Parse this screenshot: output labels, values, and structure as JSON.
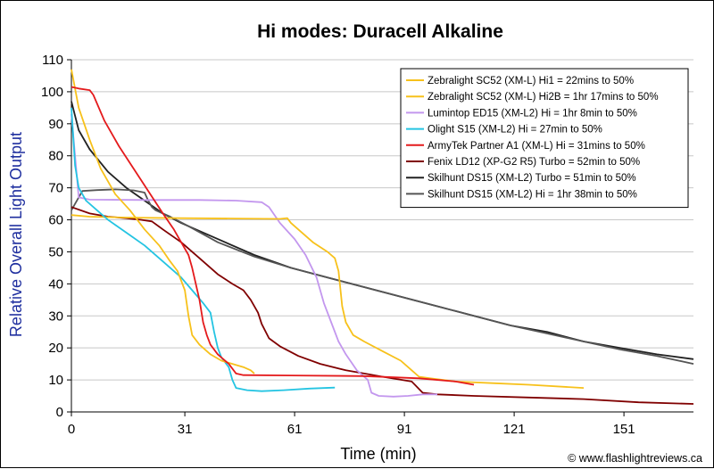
{
  "chart_data": {
    "type": "line",
    "title": "Hi modes: Duracell Alkaline",
    "xlabel": "Time (min)",
    "ylabel": "Relative Overall Light Output",
    "xlim": [
      0,
      170
    ],
    "ylim": [
      0,
      110
    ],
    "xticks": [
      0,
      31,
      61,
      91,
      121,
      151
    ],
    "yticks": [
      0,
      10,
      20,
      30,
      40,
      50,
      60,
      70,
      80,
      90,
      100,
      110
    ],
    "grid": "horizontal",
    "legend_position": "top-right",
    "credit": "© www.flashlightreviews.ca",
    "series": [
      {
        "name": "Zebralight SC52 (XM-L) Hi1 = 22mins to 50%",
        "color": "#f7c11b",
        "points": [
          [
            0,
            107
          ],
          [
            2,
            95
          ],
          [
            5,
            85
          ],
          [
            8,
            76
          ],
          [
            12,
            68
          ],
          [
            16,
            63
          ],
          [
            20,
            57
          ],
          [
            24,
            52
          ],
          [
            27,
            47
          ],
          [
            29,
            44
          ],
          [
            31,
            38
          ],
          [
            32,
            30
          ],
          [
            33,
            24
          ],
          [
            35,
            21
          ],
          [
            38,
            18
          ],
          [
            41,
            16
          ],
          [
            44,
            15
          ],
          [
            47,
            14
          ],
          [
            49,
            13
          ],
          [
            50,
            12
          ]
        ]
      },
      {
        "name": "Zebralight SC52 (XM-L) Hi2B = 1hr 17mins to 50%",
        "color": "#f7c11b",
        "points": [
          [
            0,
            61.5
          ],
          [
            5,
            61
          ],
          [
            15,
            60.7
          ],
          [
            30,
            60.5
          ],
          [
            45,
            60.4
          ],
          [
            57,
            60.3
          ],
          [
            59,
            60.5
          ],
          [
            60,
            59
          ],
          [
            62,
            57
          ],
          [
            66,
            53
          ],
          [
            70,
            50
          ],
          [
            72,
            48
          ],
          [
            73,
            44
          ],
          [
            74,
            33
          ],
          [
            75,
            28
          ],
          [
            77,
            24
          ],
          [
            80,
            22
          ],
          [
            85,
            19
          ],
          [
            90,
            16
          ],
          [
            93,
            13
          ],
          [
            95,
            11
          ],
          [
            98,
            10.5
          ],
          [
            105,
            9.5
          ],
          [
            115,
            9
          ],
          [
            125,
            8.5
          ],
          [
            140,
            7.5
          ]
        ]
      },
      {
        "name": "Lumintop ED15 (XM-L2) Hi = 1hr 8min to 50%",
        "color": "#c397ee",
        "points": [
          [
            0,
            93
          ],
          [
            2,
            67
          ],
          [
            5,
            66.3
          ],
          [
            20,
            66.2
          ],
          [
            35,
            66.2
          ],
          [
            45,
            66
          ],
          [
            52,
            65.5
          ],
          [
            54,
            64
          ],
          [
            57,
            59
          ],
          [
            61,
            54
          ],
          [
            64,
            49
          ],
          [
            67,
            42
          ],
          [
            69,
            34
          ],
          [
            71,
            28
          ],
          [
            73,
            22
          ],
          [
            75,
            18
          ],
          [
            78,
            13
          ],
          [
            81,
            10
          ],
          [
            82,
            6
          ],
          [
            84,
            5
          ],
          [
            88,
            4.8
          ],
          [
            92,
            5
          ],
          [
            96,
            5.5
          ],
          [
            100,
            5.5
          ]
        ]
      },
      {
        "name": "Olight S15 (XM-L2) Hi = 27min to 50%",
        "color": "#24c4e2",
        "points": [
          [
            0,
            95
          ],
          [
            1,
            77
          ],
          [
            2,
            70
          ],
          [
            4,
            66
          ],
          [
            7,
            63
          ],
          [
            10,
            60
          ],
          [
            15,
            56
          ],
          [
            20,
            52
          ],
          [
            25,
            47
          ],
          [
            30,
            42
          ],
          [
            33,
            38
          ],
          [
            36,
            34
          ],
          [
            38,
            31
          ],
          [
            39,
            25
          ],
          [
            40,
            20
          ],
          [
            41,
            17
          ],
          [
            43,
            14
          ],
          [
            44,
            10
          ],
          [
            45,
            7.5
          ],
          [
            48,
            6.8
          ],
          [
            52,
            6.5
          ],
          [
            58,
            6.8
          ],
          [
            65,
            7.3
          ],
          [
            72,
            7.6
          ]
        ]
      },
      {
        "name": "ArmyTek Partner A1 (XM-L) Hi = 31mins to 50%",
        "color": "#e41a1c",
        "points": [
          [
            0,
            101.5
          ],
          [
            2,
            101
          ],
          [
            5,
            100.5
          ],
          [
            6,
            99
          ],
          [
            9,
            91
          ],
          [
            13,
            83
          ],
          [
            17,
            76
          ],
          [
            21,
            69
          ],
          [
            25,
            62
          ],
          [
            28,
            57
          ],
          [
            30,
            53
          ],
          [
            32,
            49
          ],
          [
            33,
            45
          ],
          [
            35,
            35
          ],
          [
            36,
            28
          ],
          [
            37,
            24
          ],
          [
            38,
            21
          ],
          [
            40,
            18
          ],
          [
            43,
            15
          ],
          [
            45,
            12
          ],
          [
            47,
            11.5
          ],
          [
            60,
            11.4
          ],
          [
            80,
            11.2
          ],
          [
            95,
            10.5
          ],
          [
            105,
            9.5
          ],
          [
            110,
            8.5
          ]
        ]
      },
      {
        "name": "Fenix LD12 (XP-G2 R5) Turbo = 52min to 50%",
        "color": "#800000",
        "points": [
          [
            0,
            64
          ],
          [
            5,
            62
          ],
          [
            10,
            61
          ],
          [
            15,
            60.5
          ],
          [
            19,
            60
          ],
          [
            22,
            59.5
          ],
          [
            25,
            57
          ],
          [
            30,
            53
          ],
          [
            35,
            48
          ],
          [
            40,
            43
          ],
          [
            44,
            40
          ],
          [
            47,
            38
          ],
          [
            49,
            35
          ],
          [
            51,
            31
          ],
          [
            52,
            27.5
          ],
          [
            54,
            23
          ],
          [
            57,
            20.5
          ],
          [
            62,
            17.5
          ],
          [
            68,
            15
          ],
          [
            75,
            13
          ],
          [
            85,
            11
          ],
          [
            93,
            9.5
          ],
          [
            96,
            6
          ],
          [
            100,
            5.5
          ],
          [
            110,
            5
          ],
          [
            125,
            4.5
          ],
          [
            140,
            4
          ],
          [
            155,
            3
          ],
          [
            170,
            2.5
          ]
        ]
      },
      {
        "name": "Skilhunt DS15 (XM-L2) Turbo = 51min to 50%",
        "color": "#222222",
        "points": [
          [
            0,
            97
          ],
          [
            2,
            88
          ],
          [
            5,
            82
          ],
          [
            10,
            75
          ],
          [
            15,
            70
          ],
          [
            20,
            66
          ],
          [
            25,
            62
          ],
          [
            30,
            59
          ],
          [
            40,
            54
          ],
          [
            50,
            49
          ],
          [
            60,
            45
          ],
          [
            70,
            42
          ],
          [
            80,
            39
          ],
          [
            90,
            36
          ],
          [
            100,
            33
          ],
          [
            110,
            30
          ],
          [
            120,
            27
          ],
          [
            130,
            25
          ],
          [
            140,
            22
          ],
          [
            150,
            20
          ],
          [
            160,
            18
          ],
          [
            170,
            16.5
          ]
        ]
      },
      {
        "name": "Skilhunt DS15 (XM-L2) Hi = 1hr 38min to 50%",
        "color": "#555555",
        "points": [
          [
            0,
            63
          ],
          [
            3,
            69
          ],
          [
            7,
            69.3
          ],
          [
            12,
            69.5
          ],
          [
            17,
            69.2
          ],
          [
            20,
            68.5
          ],
          [
            21,
            66
          ],
          [
            22,
            64
          ],
          [
            23,
            63
          ],
          [
            27,
            61
          ],
          [
            32,
            58
          ],
          [
            40,
            53
          ],
          [
            50,
            48.5
          ],
          [
            60,
            45
          ],
          [
            70,
            42
          ],
          [
            80,
            39
          ],
          [
            90,
            36
          ],
          [
            100,
            33
          ],
          [
            110,
            30
          ],
          [
            120,
            27
          ],
          [
            130,
            24.5
          ],
          [
            140,
            22
          ],
          [
            150,
            19.5
          ],
          [
            160,
            17.5
          ],
          [
            170,
            15
          ]
        ]
      }
    ]
  }
}
